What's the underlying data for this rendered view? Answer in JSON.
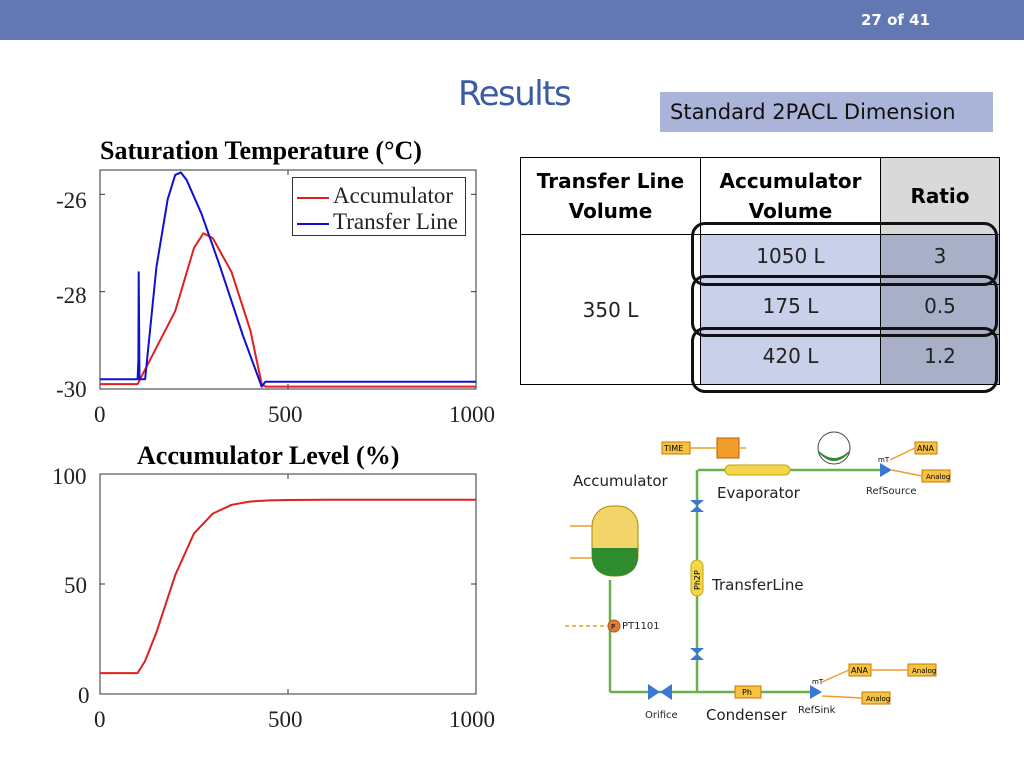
{
  "header": {
    "page": "27 of 41"
  },
  "title": "Results",
  "dimension_box": "Standard 2PACL Dimension",
  "table": {
    "headers": [
      "Transfer Line\nVolume",
      "Accumulator\nVolume",
      "Ratio"
    ],
    "transfer_line_volume": "350 L",
    "rows": [
      {
        "accumulator_volume": "1050 L",
        "ratio": "3"
      },
      {
        "accumulator_volume": "175 L",
        "ratio": "0.5"
      },
      {
        "accumulator_volume": "420 L",
        "ratio": "1.2"
      }
    ]
  },
  "diagram": {
    "labels": {
      "accumulator": "Accumulator",
      "evaporator": "Evaporator",
      "transfer_line": "TransferLine",
      "condenser": "Condenser",
      "orifice": "Orifice",
      "pt": "PT1101",
      "ref_source": "RefSource",
      "ref_sink": "RefSink",
      "time": "TIME",
      "ana1": "ANA",
      "analog1": "Analog",
      "ana2": "ANA",
      "analog2": "Analog",
      "analog3": "Analog",
      "mt1": "mT",
      "mt2": "mT",
      "ph": "Ph",
      "ph2p": "Ph2P",
      "p": "P"
    }
  },
  "chart_data": [
    {
      "type": "line",
      "title": "Saturation Temperature (°C)",
      "xlim": [
        0,
        1000
      ],
      "ylim": [
        -30,
        -25.5
      ],
      "xticks": [
        "0",
        "500",
        "1000"
      ],
      "yticks": [
        "-26",
        "-28",
        "-30"
      ],
      "legend_position": "top-right",
      "grid": false,
      "series": [
        {
          "name": "Accumulator",
          "color": "#e02020",
          "x": [
            0,
            100,
            200,
            250,
            275,
            300,
            350,
            400,
            430,
            440,
            500,
            1000
          ],
          "y": [
            -29.9,
            -29.9,
            -28.4,
            -27.1,
            -26.8,
            -26.9,
            -27.6,
            -28.8,
            -29.9,
            -29.95,
            -29.95,
            -29.95
          ]
        },
        {
          "name": "Transfer Line",
          "color": "#1010d0",
          "x": [
            0,
            100,
            102,
            103,
            105,
            120,
            150,
            180,
            200,
            215,
            230,
            270,
            320,
            380,
            430,
            440,
            500,
            1000
          ],
          "y": [
            -29.8,
            -29.8,
            -29.4,
            -27.6,
            -29.8,
            -29.8,
            -27.5,
            -26.1,
            -25.6,
            -25.55,
            -25.7,
            -26.4,
            -27.5,
            -28.9,
            -29.95,
            -29.85,
            -29.85,
            -29.85
          ]
        }
      ]
    },
    {
      "type": "line",
      "title": "Accumulator Level (%)",
      "xlim": [
        0,
        1000
      ],
      "ylim": [
        0,
        100
      ],
      "xticks": [
        "0",
        "500",
        "1000"
      ],
      "yticks": [
        "100",
        "50",
        "0"
      ],
      "grid": false,
      "series": [
        {
          "color": "#e02020",
          "x": [
            0,
            100,
            120,
            150,
            200,
            250,
            300,
            350,
            400,
            450,
            500,
            600,
            1000
          ],
          "y": [
            9.5,
            9.5,
            15,
            28,
            54,
            73,
            82,
            86,
            87.5,
            88,
            88.2,
            88.3,
            88.3
          ]
        }
      ]
    }
  ]
}
